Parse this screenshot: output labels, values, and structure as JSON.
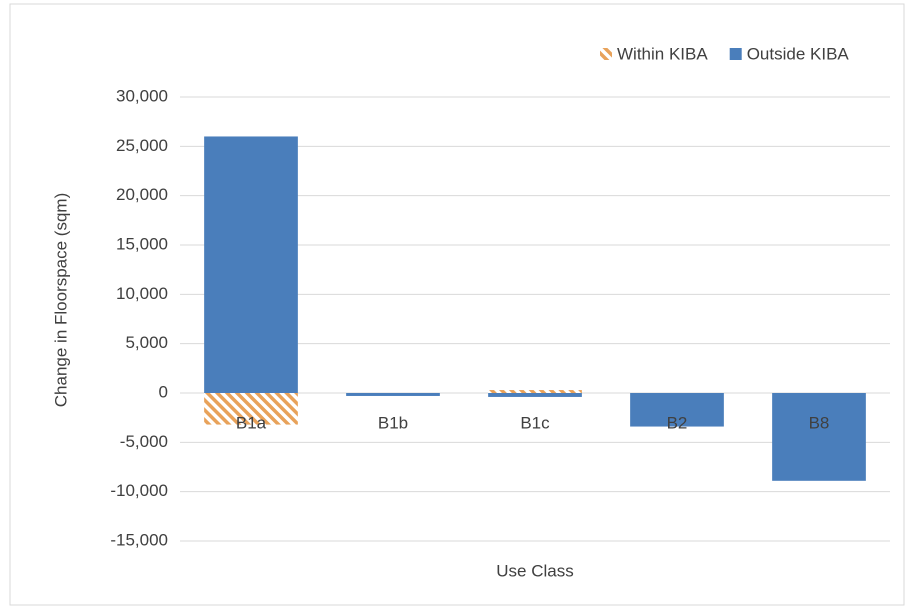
{
  "chart_data": {
    "type": "stacked_bar",
    "x_label": "Use Class",
    "y_label": "Change in Floorspace (sqm)",
    "categories": [
      "B1a",
      "B1b",
      "B1c",
      "B2",
      "B8"
    ],
    "series": [
      {
        "name": "Within KIBA",
        "color": "#e8a25a",
        "pattern": "hatch",
        "values": [
          -3200,
          0,
          300,
          0,
          0
        ]
      },
      {
        "name": "Outside KIBA",
        "color": "#4a7ebb",
        "values": [
          26000,
          -300,
          -400,
          -3400,
          -8900
        ]
      }
    ],
    "ylim": [
      -15000,
      30000
    ],
    "yticks": [
      {
        "value": -15000,
        "label": "-15,000"
      },
      {
        "value": -10000,
        "label": "-10,000"
      },
      {
        "value": -5000,
        "label": "-5,000"
      },
      0,
      {
        "value": 5000,
        "label": "5,000"
      },
      {
        "value": 10000,
        "label": "10,000"
      },
      {
        "value": 15000,
        "label": "15,000"
      },
      {
        "value": 20000,
        "label": "20,000"
      },
      {
        "value": 25000,
        "label": "25,000"
      },
      {
        "value": 30000,
        "label": "30,000"
      }
    ],
    "grid": true,
    "legend": "top-right"
  }
}
